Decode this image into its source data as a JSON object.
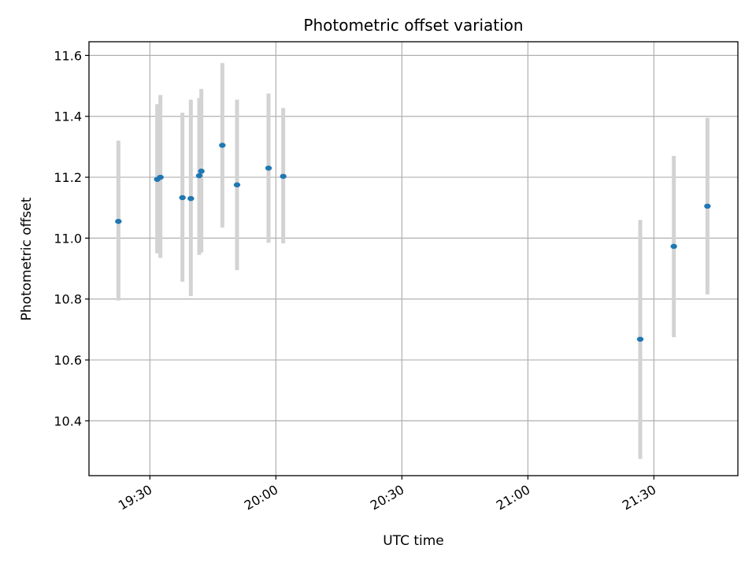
{
  "chart_data": {
    "type": "scatter",
    "title": "Photometric offset variation",
    "xlabel": "UTC time",
    "ylabel": "Photometric offset",
    "x_ticks": [
      "19:30",
      "20:00",
      "20:30",
      "21:00",
      "21:30"
    ],
    "y_ticks": [
      "10.4",
      "10.6",
      "10.8",
      "11.0",
      "11.2",
      "11.4",
      "11.6"
    ],
    "xlim": [
      "19:15:30",
      "21:50:00"
    ],
    "ylim": [
      10.22,
      11.645
    ],
    "grid": true,
    "marker_color": "#1f77b4",
    "errorbar_color": "#d3d3d3",
    "points": [
      {
        "x": "19:22:30",
        "y": 11.055,
        "ylow": 10.795,
        "yhigh": 11.32
      },
      {
        "x": "19:31:45",
        "y": 11.193,
        "ylow": 10.95,
        "yhigh": 11.44
      },
      {
        "x": "19:32:30",
        "y": 11.2,
        "ylow": 10.935,
        "yhigh": 11.47
      },
      {
        "x": "19:37:45",
        "y": 11.133,
        "ylow": 10.857,
        "yhigh": 11.412
      },
      {
        "x": "19:39:45",
        "y": 11.13,
        "ylow": 10.81,
        "yhigh": 11.455
      },
      {
        "x": "19:41:45",
        "y": 11.205,
        "ylow": 10.945,
        "yhigh": 11.46
      },
      {
        "x": "19:42:15",
        "y": 11.22,
        "ylow": 10.953,
        "yhigh": 11.49
      },
      {
        "x": "19:47:15",
        "y": 11.305,
        "ylow": 11.035,
        "yhigh": 11.575
      },
      {
        "x": "19:50:45",
        "y": 11.175,
        "ylow": 10.895,
        "yhigh": 11.455
      },
      {
        "x": "19:58:15",
        "y": 11.23,
        "ylow": 10.985,
        "yhigh": 11.475
      },
      {
        "x": "20:01:45",
        "y": 11.203,
        "ylow": 10.983,
        "yhigh": 11.427
      },
      {
        "x": "21:26:45",
        "y": 10.668,
        "ylow": 10.275,
        "yhigh": 11.06
      },
      {
        "x": "21:34:45",
        "y": 10.973,
        "ylow": 10.675,
        "yhigh": 11.27
      },
      {
        "x": "21:42:45",
        "y": 11.105,
        "ylow": 10.815,
        "yhigh": 11.395
      }
    ]
  }
}
